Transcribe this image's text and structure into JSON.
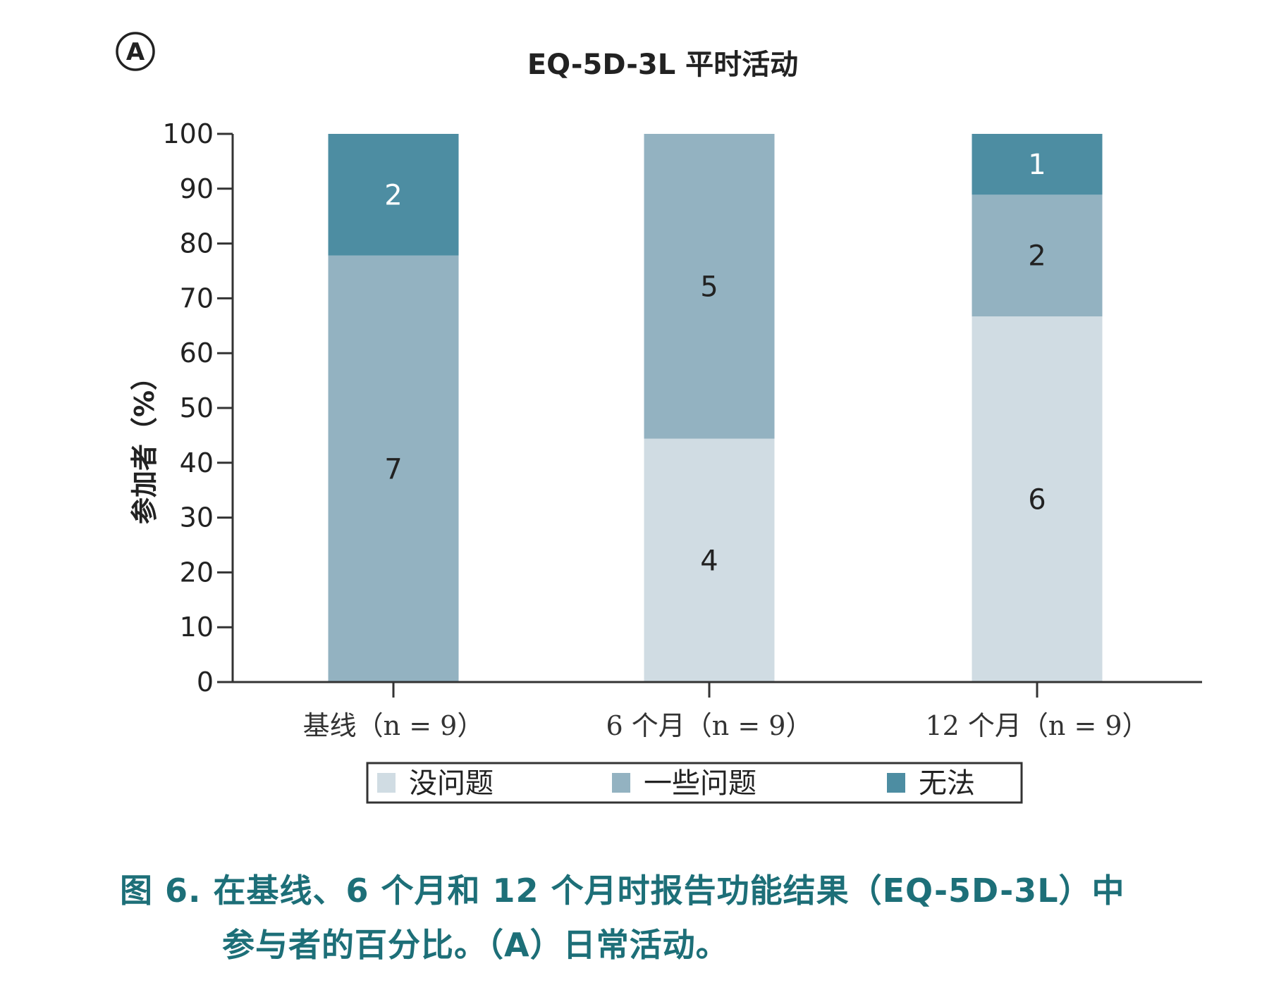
{
  "panel_label": "A",
  "caption": {
    "line1": "图 6. 在基线、6 个月和 12 个月时报告功能结果（EQ-5D-3L）中",
    "line2": "参与者的百分比。（A）日常活动。"
  },
  "chart_data": {
    "type": "bar",
    "stacked": true,
    "title": "EQ-5D-3L 平时活动",
    "xlabel": "",
    "ylabel": "参加者（%）",
    "ylim": [
      0,
      100
    ],
    "yticks": [
      0,
      10,
      20,
      30,
      40,
      50,
      60,
      70,
      80,
      90,
      100
    ],
    "grid": false,
    "legend_position": "bottom",
    "categories": [
      "基线（n = 9）",
      "6 个月（n = 9）",
      "12 个月（n = 9）"
    ],
    "series": [
      {
        "name": "没问题",
        "color": "#d0dce3",
        "counts": [
          0,
          4,
          6
        ],
        "values": [
          0,
          44.4,
          66.7
        ]
      },
      {
        "name": "一些问题",
        "color": "#93b2c1",
        "counts": [
          7,
          5,
          2
        ],
        "values": [
          77.8,
          55.6,
          22.2
        ]
      },
      {
        "name": "无法",
        "color": "#4d8da2",
        "counts": [
          2,
          0,
          1
        ],
        "values": [
          22.2,
          0,
          11.1
        ]
      }
    ]
  }
}
